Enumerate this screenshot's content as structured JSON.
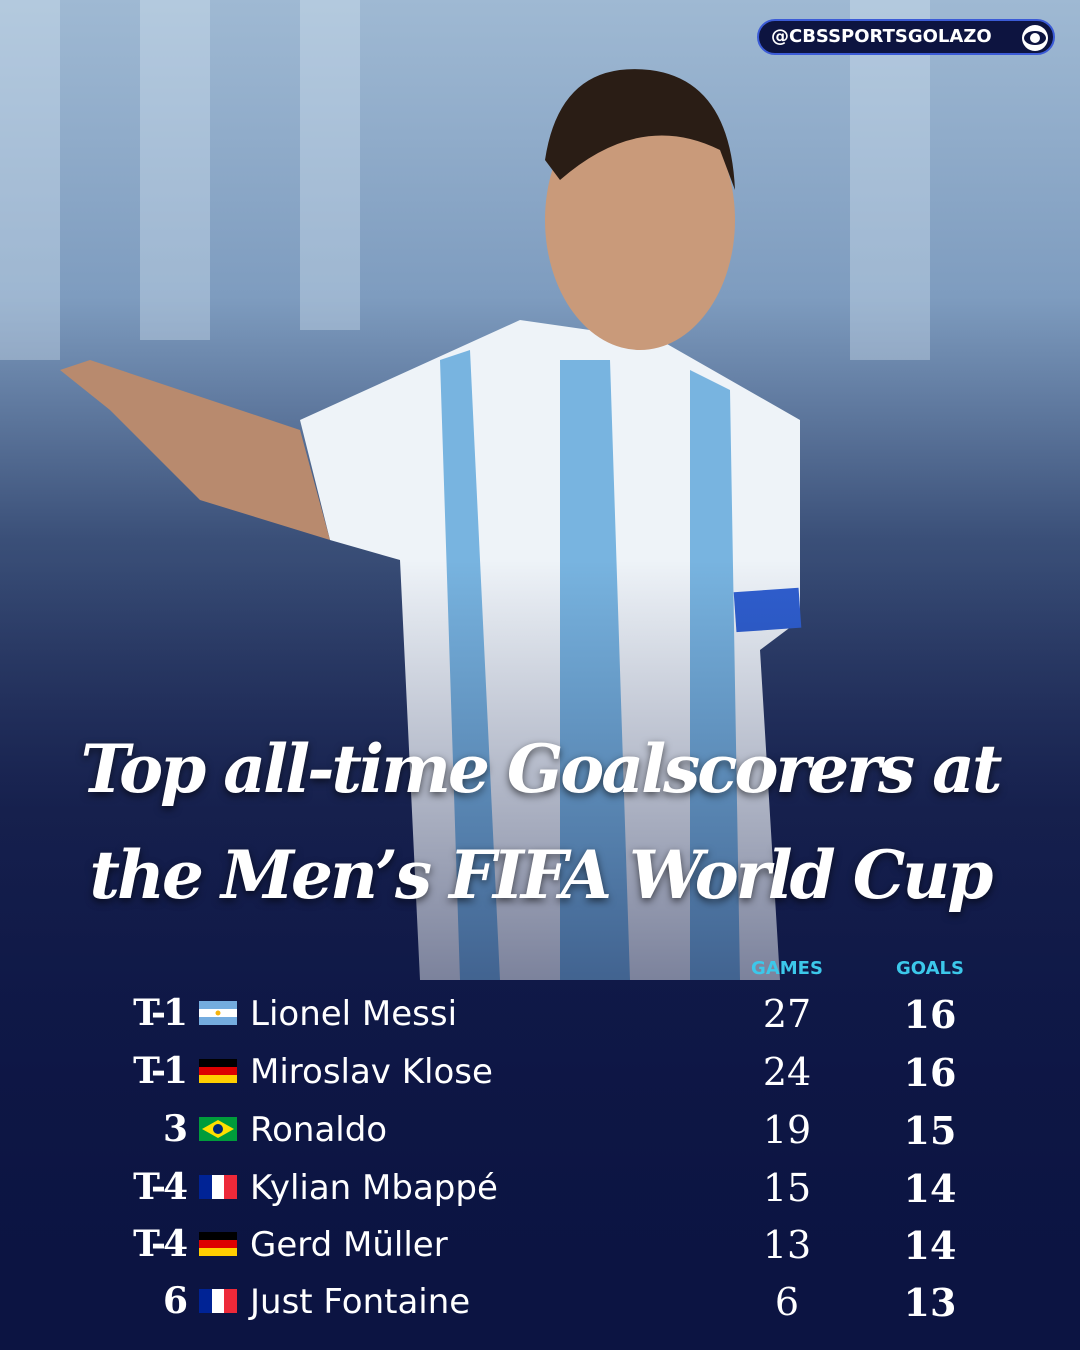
{
  "handle": "@CBSSPORTSGOLAZO",
  "title": [
    "Top all-time Goalscorers at",
    "the Men’s FIFA World Cup"
  ],
  "table": {
    "headers": [
      "GAMES",
      "GOALS"
    ],
    "rows": [
      {
        "rank": "T-1",
        "player": "Lionel Messi",
        "games": 27,
        "goals": 16
      },
      {
        "rank": "T-1",
        "player": "Miroslav Klose",
        "games": 24,
        "goals": 16
      },
      {
        "rank": "3",
        "player": "Ronaldo",
        "games": 19,
        "goals": 15
      },
      {
        "rank": "T-4",
        "player": "Kylian Mbappé",
        "games": 15,
        "goals": 14
      },
      {
        "rank": "T-4",
        "player": "Gerd Müller",
        "games": 13,
        "goals": 14
      },
      {
        "rank": "6",
        "player": "Just Fontaine",
        "games": 6,
        "goals": 13
      }
    ]
  }
}
